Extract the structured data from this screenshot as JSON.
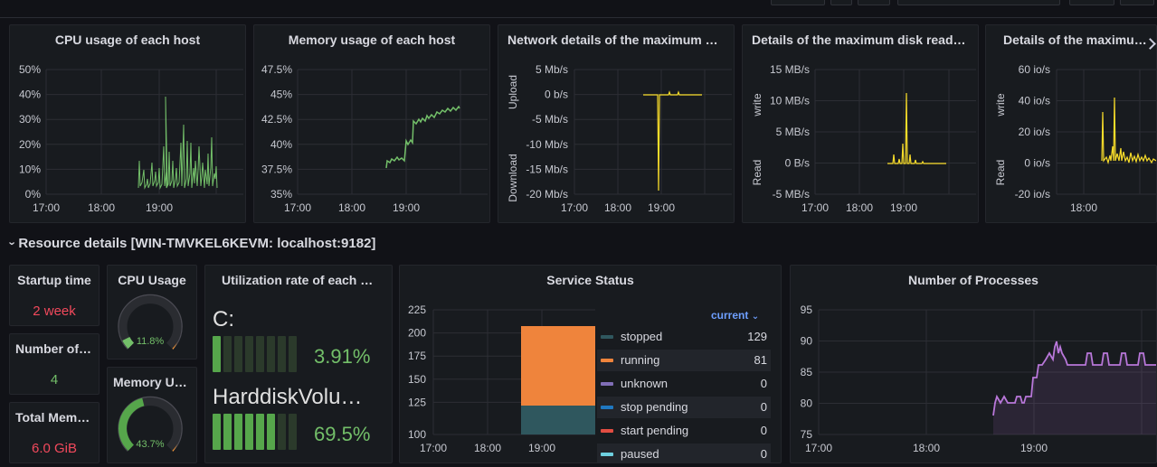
{
  "colors": {
    "green": "#73bf69",
    "yellow": "#fade2a",
    "red": "#f2495c",
    "orange": "#ff9830",
    "purple": "#b877d9",
    "teal": "#2f575e",
    "blue": "#5794f2",
    "accent": "#6e9fff"
  },
  "panels": {
    "cpu": {
      "title": "CPU usage of each host",
      "y_ticks": [
        "50%",
        "40%",
        "30%",
        "20%",
        "10%",
        "0%"
      ],
      "x_ticks": [
        "17:00",
        "18:00",
        "19:00"
      ]
    },
    "mem": {
      "title": "Memory usage of each host",
      "y_ticks": [
        "47.5%",
        "45%",
        "42.5%",
        "40%",
        "37.5%",
        "35%"
      ],
      "x_ticks": [
        "17:00",
        "18:00",
        "19:00"
      ]
    },
    "net": {
      "title": "Network details of the maximum network card",
      "y_ticks": [
        "5 Mb/s",
        "0 b/s",
        "-5 Mb/s",
        "-10 Mb/s",
        "-15 Mb/s",
        "-20 Mb/s"
      ],
      "x_ticks": [
        "17:00",
        "18:00",
        "19:00"
      ],
      "upper_label": "Upload",
      "lower_label": "Download"
    },
    "disk": {
      "title": "Details of the maximum disk read and write",
      "y_ticks": [
        "15 MB/s",
        "10 MB/s",
        "5 MB/s",
        "0 B/s",
        "-5 MB/s"
      ],
      "x_ticks": [
        "17:00",
        "18:00",
        "19:00"
      ],
      "upper_label": "write",
      "lower_label": "Read"
    },
    "iops": {
      "title": "Details of the maximum disk IOPS",
      "y_ticks": [
        "60 io/s",
        "40 io/s",
        "20 io/s",
        "0 io/s",
        "-20 io/s"
      ],
      "x_ticks": [
        "18:00"
      ],
      "upper_label": "write",
      "lower_label": "Read"
    }
  },
  "row": {
    "title": "Resource details [WIN-TMVKEL6KEVM: localhost:9182]",
    "chevron": "›"
  },
  "stats": {
    "startup": {
      "title": "Startup time",
      "value": "2 week"
    },
    "cores": {
      "title": "Number of CPU cores",
      "value": "4"
    },
    "totalmem": {
      "title": "Total Memory",
      "value": "6.0 GiB"
    },
    "cpu_gauge": {
      "title": "CPU Usage",
      "value": "11.8%",
      "fraction": 0.118
    },
    "mem_gauge": {
      "title": "Memory Usage",
      "value": "43.7%",
      "fraction": 0.437
    }
  },
  "partitions": {
    "title": "Utilization rate of each partition",
    "items": [
      {
        "name": "C:",
        "value": "3.91%",
        "fraction": 0.0391
      },
      {
        "name": "HarddiskVolume",
        "value": "69.5%",
        "fraction": 0.695
      }
    ]
  },
  "services": {
    "title": "Service Status",
    "legend_header": "current",
    "y_ticks": [
      "225",
      "200",
      "175",
      "150",
      "125",
      "100"
    ],
    "x_ticks": [
      "17:00",
      "18:00",
      "19:00"
    ],
    "legend": [
      {
        "name": "stopped",
        "value": "129",
        "color": "#2f575e"
      },
      {
        "name": "running",
        "value": "81",
        "color": "#ef843c"
      },
      {
        "name": "unknown",
        "value": "0",
        "color": "#806eb7"
      },
      {
        "name": "stop pending",
        "value": "0",
        "color": "#1f78c1"
      },
      {
        "name": "start pending",
        "value": "0",
        "color": "#e24d42"
      },
      {
        "name": "paused",
        "value": "0",
        "color": "#6ed0e0"
      }
    ]
  },
  "processes": {
    "title": "Number of Processes",
    "y_ticks": [
      "95",
      "90",
      "85",
      "80",
      "75"
    ],
    "x_ticks": [
      "17:00",
      "18:00",
      "19:00"
    ]
  }
}
